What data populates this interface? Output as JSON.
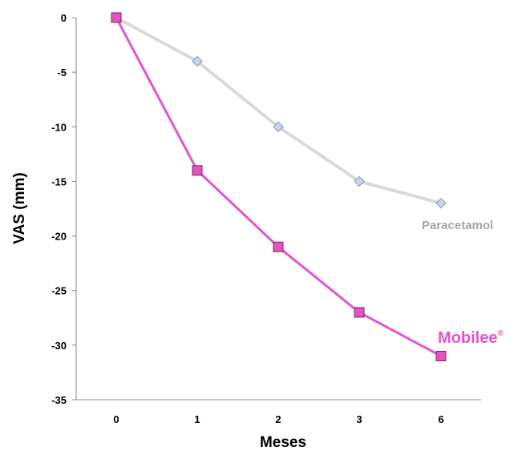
{
  "chart_data": {
    "type": "line",
    "categories": [
      "0",
      "1",
      "2",
      "3",
      "6"
    ],
    "xlabel": "Meses",
    "ylabel": "VAS (mm)",
    "ylim": [
      -35,
      0
    ],
    "yticks": [
      0,
      -5,
      -10,
      -15,
      -20,
      -25,
      -30,
      -35
    ],
    "grid": false,
    "series": [
      {
        "name": "Paracetamol",
        "values": [
          0,
          -4,
          -10,
          -15,
          -17
        ],
        "color": "#d9d9d9",
        "marker_fill": "#c9d7ec",
        "marker_stroke": "#8394b3",
        "marker": "diamond"
      },
      {
        "name": "Mobilee",
        "name_sup": "®",
        "values": [
          0,
          -14,
          -21,
          -27,
          -31
        ],
        "color": "#e254d2",
        "marker_fill": "#e254c0",
        "marker_stroke": "#7a2a60",
        "marker": "square"
      }
    ],
    "label_colors": {
      "Paracetamol": "#a6a6a6",
      "Mobilee": "#e254d2"
    }
  }
}
